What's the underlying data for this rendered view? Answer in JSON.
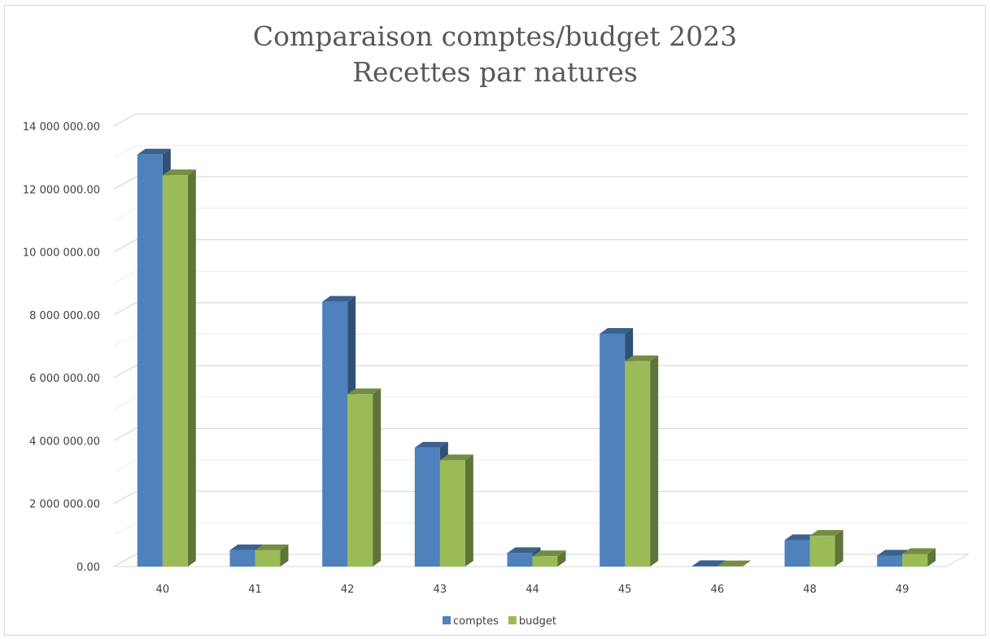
{
  "chart_data": {
    "type": "bar",
    "title": [
      "Comparaison comptes/budget 2023",
      "Recettes par natures"
    ],
    "categories": [
      "40",
      "41",
      "42",
      "43",
      "44",
      "45",
      "46",
      "48",
      "49"
    ],
    "series": [
      {
        "name": "comptes",
        "color": "#4f81bd",
        "values": [
          13100000,
          520000,
          8420000,
          3780000,
          430000,
          7400000,
          15000,
          840000,
          350000
        ]
      },
      {
        "name": "budget",
        "color": "#9bbb59",
        "values": [
          12440000,
          520000,
          5480000,
          3380000,
          330000,
          6530000,
          10000,
          980000,
          400000
        ]
      }
    ],
    "ylim": [
      0,
      14000000
    ],
    "yticks": [
      "0.00",
      "2 000 000.00",
      "4 000 000.00",
      "6 000 000.00",
      "8 000 000.00",
      "10 000 000.00",
      "12 000 000.00",
      "14 000 000.00"
    ],
    "xlabel": "",
    "ylabel": "",
    "grid": true,
    "legend": "bottom",
    "style": "3d-clustered-column"
  }
}
